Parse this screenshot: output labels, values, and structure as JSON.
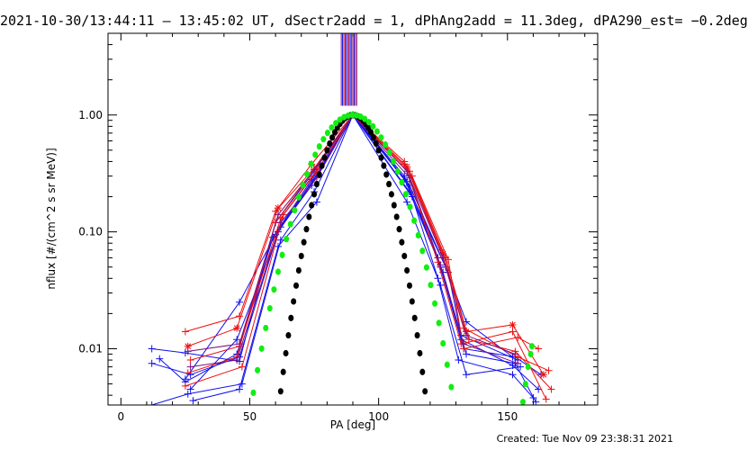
{
  "chart_data": {
    "type": "line",
    "title": "2021-10-30/13:44:11 — 13:45:02 UT, dSectr2add = 1, dPhAng2add = 11.3deg, dPA290_est= −0.2deg",
    "xlabel": "PA [deg]",
    "ylabel": "nflux [#/(cm^2 s sr MeV)]",
    "xlim": [
      -5,
      185
    ],
    "ylim": [
      0.0033,
      5.0
    ],
    "yscale": "log",
    "x_ticks": [
      0,
      50,
      100,
      150
    ],
    "x_tick_labels": [
      "0",
      "50",
      "100",
      "150"
    ],
    "y_ticks": [
      0.01,
      0.1,
      1.0
    ],
    "y_tick_labels": [
      "0.01",
      "0.10",
      "1.00"
    ],
    "grid": false,
    "colors": {
      "blue": "#1010ee",
      "red": "#ee1010",
      "purple": "#7a1080",
      "black_fit": "#000000",
      "green_fit": "#11ee11"
    },
    "vertical_marker": {
      "x_start": 85.5,
      "x_end": 91.5,
      "y_from": 1.2,
      "y_to": 5.0
    },
    "series": [
      {
        "color": "blue",
        "marker": "+",
        "x": [
          12,
          25,
          46,
          60,
          75,
          90,
          110,
          123,
          132,
          152,
          162
        ],
        "y": [
          0.01,
          0.0092,
          0.0078,
          0.12,
          0.33,
          1.0,
          0.3,
          0.06,
          0.012,
          0.0072,
          0.0045
        ]
      },
      {
        "color": "blue",
        "marker": "+",
        "x": [
          12,
          27,
          46,
          61,
          76,
          90,
          111,
          124,
          133,
          153,
          163
        ],
        "y": [
          0.0075,
          0.006,
          0.0085,
          0.1,
          0.3,
          1.0,
          0.27,
          0.05,
          0.01,
          0.0085,
          0.006
        ]
      },
      {
        "color": "blue",
        "marker": "+",
        "x": [
          15,
          25,
          45,
          59,
          74,
          90,
          112,
          125,
          134,
          153,
          161
        ],
        "y": [
          0.0082,
          0.0052,
          0.009,
          0.09,
          0.28,
          1.0,
          0.22,
          0.045,
          0.009,
          0.0075,
          0.0035
        ]
      },
      {
        "color": "blue",
        "marker": "+",
        "x": [
          12,
          26,
          47,
          62,
          75,
          90,
          113,
          123,
          131,
          152,
          160
        ],
        "y": [
          0.0033,
          0.0041,
          0.005,
          0.085,
          0.22,
          1.0,
          0.2,
          0.04,
          0.008,
          0.006,
          0.0038
        ]
      },
      {
        "color": "blue",
        "marker": "+",
        "x": [
          25,
          46,
          60,
          74,
          90,
          112,
          126,
          134,
          152
        ],
        "y": [
          0.0055,
          0.025,
          0.095,
          0.25,
          1.0,
          0.25,
          0.05,
          0.017,
          0.0085
        ]
      },
      {
        "color": "blue",
        "marker": "+",
        "x": [
          27,
          45,
          62,
          76,
          90,
          110,
          127,
          132,
          154
        ],
        "y": [
          0.0045,
          0.012,
          0.11,
          0.31,
          1.0,
          0.28,
          0.045,
          0.013,
          0.008
        ]
      },
      {
        "color": "blue",
        "marker": "+",
        "x": [
          28,
          46,
          61,
          76,
          90,
          111,
          124,
          134,
          155
        ],
        "y": [
          0.0036,
          0.0045,
          0.075,
          0.18,
          1.0,
          0.18,
          0.035,
          0.006,
          0.007
        ]
      },
      {
        "color": "red",
        "marker": "+",
        "x": [
          25,
          46,
          60,
          75,
          90,
          110,
          124,
          133,
          154,
          166
        ],
        "y": [
          0.014,
          0.019,
          0.15,
          0.35,
          1.0,
          0.4,
          0.07,
          0.015,
          0.0085,
          0.0065
        ]
      },
      {
        "color": "red",
        "marker": "*",
        "x": [
          26,
          45,
          61,
          74,
          90,
          111,
          125,
          134,
          152,
          164
        ],
        "y": [
          0.0105,
          0.015,
          0.16,
          0.38,
          1.0,
          0.36,
          0.065,
          0.014,
          0.016,
          0.006
        ]
      },
      {
        "color": "red",
        "marker": "+",
        "x": [
          27,
          46,
          62,
          76,
          90,
          112,
          126,
          135,
          153,
          167
        ],
        "y": [
          0.008,
          0.0105,
          0.13,
          0.33,
          1.0,
          0.33,
          0.06,
          0.012,
          0.0095,
          0.0045
        ]
      },
      {
        "color": "red",
        "marker": "+",
        "x": [
          26,
          45,
          60,
          73,
          90,
          110,
          123,
          132,
          152,
          165
        ],
        "y": [
          0.0062,
          0.0085,
          0.12,
          0.3,
          1.0,
          0.38,
          0.055,
          0.011,
          0.014,
          0.0037
        ]
      },
      {
        "color": "red",
        "marker": "+",
        "x": [
          25,
          47,
          63,
          77,
          90,
          113,
          127,
          133,
          154,
          162
        ],
        "y": [
          0.0048,
          0.007,
          0.14,
          0.36,
          1.0,
          0.3,
          0.058,
          0.01,
          0.0125,
          0.01
        ]
      },
      {
        "color": "purple",
        "marker": "+",
        "x": [
          26,
          46,
          61,
          75,
          90,
          111,
          125,
          134,
          153
        ],
        "y": [
          0.0095,
          0.011,
          0.14,
          0.34,
          1.0,
          0.33,
          0.06,
          0.013,
          0.009
        ]
      },
      {
        "color": "purple",
        "marker": "+",
        "x": [
          27,
          45,
          62,
          76,
          90,
          112,
          124,
          133,
          154
        ],
        "y": [
          0.007,
          0.008,
          0.12,
          0.29,
          1.0,
          0.29,
          0.052,
          0.011,
          0.0075
        ]
      }
    ],
    "fits": [
      {
        "name": "",
        "color": "black_fit",
        "marker": "dot",
        "center": 90,
        "width": 12.0,
        "x_min": 45,
        "x_max": 135,
        "step": 1
      },
      {
        "name": "",
        "color": "green_fit",
        "marker": "dot",
        "center": 90,
        "width": 16.5,
        "x_min": 37,
        "x_max": 143,
        "step": 1.6
      },
      {
        "name": "",
        "color": "green_fit",
        "marker": "dot",
        "x": [
          156,
          157,
          158,
          159,
          159.5
        ],
        "y": [
          0.0035,
          0.005,
          0.007,
          0.009,
          0.0105
        ]
      }
    ]
  },
  "footer": {
    "created": "Created: Tue Nov 09 23:38:31 2021"
  }
}
